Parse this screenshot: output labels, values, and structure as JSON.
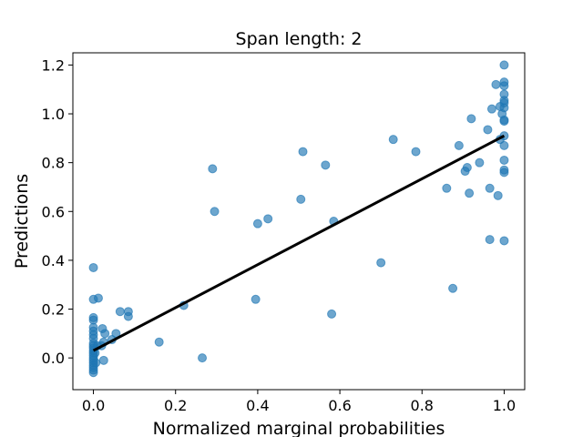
{
  "chart_data": {
    "type": "scatter",
    "title": "Span length: 2",
    "xlabel": "Normalized marginal probabilities",
    "ylabel": "Predictions",
    "xlim": [
      -0.05,
      1.05
    ],
    "ylim": [
      -0.13,
      1.25
    ],
    "xticks": [
      0.0,
      0.2,
      0.4,
      0.6,
      0.8,
      1.0
    ],
    "xtick_labels": [
      "0.0",
      "0.2",
      "0.4",
      "0.6",
      "0.8",
      "1.0"
    ],
    "yticks": [
      0.0,
      0.2,
      0.4,
      0.6,
      0.8,
      1.0,
      1.2
    ],
    "ytick_labels": [
      "0.0",
      "0.2",
      "0.4",
      "0.6",
      "0.8",
      "1.0",
      "1.2"
    ],
    "grid": false,
    "point_color": "#1f77b4",
    "point_alpha": 0.65,
    "line_color": "#000000",
    "fit_line": {
      "x": [
        0.0,
        1.0
      ],
      "y": [
        0.03,
        0.91
      ]
    },
    "points": [
      {
        "x": 0.0,
        "y": 0.37
      },
      {
        "x": 0.0,
        "y": 0.24
      },
      {
        "x": 0.012,
        "y": 0.245
      },
      {
        "x": 0.0,
        "y": 0.165
      },
      {
        "x": 0.0,
        "y": 0.155
      },
      {
        "x": 0.0,
        "y": 0.125
      },
      {
        "x": 0.0,
        "y": 0.11
      },
      {
        "x": 0.0,
        "y": 0.095
      },
      {
        "x": 0.0,
        "y": 0.08
      },
      {
        "x": 0.0,
        "y": 0.06
      },
      {
        "x": 0.0,
        "y": 0.05
      },
      {
        "x": 0.0,
        "y": 0.04
      },
      {
        "x": 0.0,
        "y": 0.03
      },
      {
        "x": 0.0,
        "y": 0.02
      },
      {
        "x": 0.0,
        "y": 0.01
      },
      {
        "x": 0.0,
        "y": 0.0
      },
      {
        "x": 0.0,
        "y": -0.01
      },
      {
        "x": 0.0,
        "y": -0.02
      },
      {
        "x": 0.0,
        "y": -0.03
      },
      {
        "x": 0.0,
        "y": -0.04
      },
      {
        "x": 0.0,
        "y": -0.05
      },
      {
        "x": 0.0,
        "y": -0.06
      },
      {
        "x": 0.004,
        "y": 0.02
      },
      {
        "x": 0.006,
        "y": -0.02
      },
      {
        "x": 0.01,
        "y": 0.05
      },
      {
        "x": 0.02,
        "y": 0.05
      },
      {
        "x": 0.022,
        "y": 0.12
      },
      {
        "x": 0.028,
        "y": 0.1
      },
      {
        "x": 0.025,
        "y": 0.065
      },
      {
        "x": 0.025,
        "y": -0.01
      },
      {
        "x": 0.045,
        "y": 0.075
      },
      {
        "x": 0.055,
        "y": 0.1
      },
      {
        "x": 0.065,
        "y": 0.19
      },
      {
        "x": 0.085,
        "y": 0.19
      },
      {
        "x": 0.085,
        "y": 0.17
      },
      {
        "x": 0.16,
        "y": 0.065
      },
      {
        "x": 0.22,
        "y": 0.215
      },
      {
        "x": 0.265,
        "y": 0.0
      },
      {
        "x": 0.29,
        "y": 0.775
      },
      {
        "x": 0.295,
        "y": 0.6
      },
      {
        "x": 0.395,
        "y": 0.24
      },
      {
        "x": 0.4,
        "y": 0.55
      },
      {
        "x": 0.425,
        "y": 0.57
      },
      {
        "x": 0.505,
        "y": 0.65
      },
      {
        "x": 0.51,
        "y": 0.845
      },
      {
        "x": 0.565,
        "y": 0.79
      },
      {
        "x": 0.58,
        "y": 0.18
      },
      {
        "x": 0.585,
        "y": 0.56
      },
      {
        "x": 0.7,
        "y": 0.39
      },
      {
        "x": 0.73,
        "y": 0.895
      },
      {
        "x": 0.785,
        "y": 0.845
      },
      {
        "x": 0.86,
        "y": 0.695
      },
      {
        "x": 0.875,
        "y": 0.285
      },
      {
        "x": 0.89,
        "y": 0.87
      },
      {
        "x": 0.905,
        "y": 0.765
      },
      {
        "x": 0.91,
        "y": 0.78
      },
      {
        "x": 0.915,
        "y": 0.675
      },
      {
        "x": 0.92,
        "y": 0.98
      },
      {
        "x": 0.94,
        "y": 0.8
      },
      {
        "x": 0.96,
        "y": 0.935
      },
      {
        "x": 0.965,
        "y": 0.485
      },
      {
        "x": 0.965,
        "y": 0.695
      },
      {
        "x": 0.97,
        "y": 1.02
      },
      {
        "x": 0.98,
        "y": 1.12
      },
      {
        "x": 0.985,
        "y": 0.665
      },
      {
        "x": 0.99,
        "y": 1.03
      },
      {
        "x": 0.99,
        "y": 0.895
      },
      {
        "x": 0.995,
        "y": 1.0
      },
      {
        "x": 1.0,
        "y": 1.2
      },
      {
        "x": 1.0,
        "y": 1.13
      },
      {
        "x": 1.0,
        "y": 1.115
      },
      {
        "x": 1.0,
        "y": 1.08
      },
      {
        "x": 1.0,
        "y": 1.055
      },
      {
        "x": 1.0,
        "y": 1.045
      },
      {
        "x": 1.0,
        "y": 1.025
      },
      {
        "x": 1.0,
        "y": 0.975
      },
      {
        "x": 1.0,
        "y": 0.97
      },
      {
        "x": 1.0,
        "y": 0.91
      },
      {
        "x": 1.0,
        "y": 0.87
      },
      {
        "x": 1.0,
        "y": 0.81
      },
      {
        "x": 1.0,
        "y": 0.77
      },
      {
        "x": 1.0,
        "y": 0.76
      },
      {
        "x": 1.0,
        "y": 0.48
      }
    ]
  }
}
